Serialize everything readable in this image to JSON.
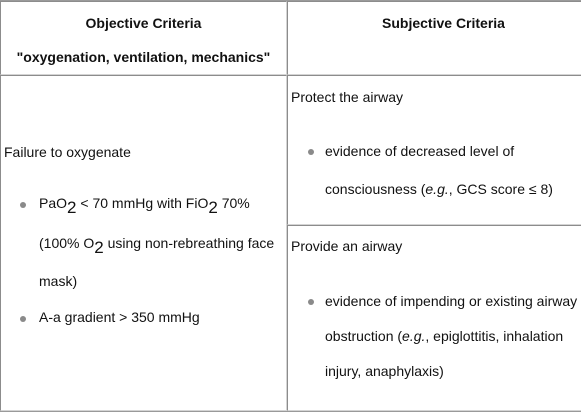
{
  "headers": {
    "objective_title": "Objective Criteria",
    "objective_subtitle": "\"oxygenation, ventilation, mechanics\"",
    "subjective_title": "Subjective Criteria"
  },
  "objective": {
    "heading": "Failure to oxygenate",
    "bullet1": {
      "pao_label": "PaO",
      "pao_sub": "2",
      "pao_rest": " < 70 mmHg with FiO",
      "fio_sub": "2",
      "fio_rest": " 70%",
      "line2_open": "(100% O",
      "o2_sub": "2",
      "line2_rest": " using non-rebreathing face",
      "line3": "mask)"
    },
    "bullet2": "A-a gradient > 350 mmHg"
  },
  "subjective": {
    "protect_heading": "Protect the airway",
    "protect_line1": "evidence of decreased level of",
    "protect_line2_pre": "consciousness (",
    "protect_line2_em": "e.g.",
    "protect_line2_post": ", GCS score ≤ 8)",
    "provide_heading": "Provide an airway",
    "provide_line1": "evidence of impending or existing airway",
    "provide_line2_pre": "obstruction (",
    "provide_line2_em": "e.g.",
    "provide_line2_post": ", epiglottitis, inhalation",
    "provide_line3": "injury, anaphylaxis)"
  }
}
